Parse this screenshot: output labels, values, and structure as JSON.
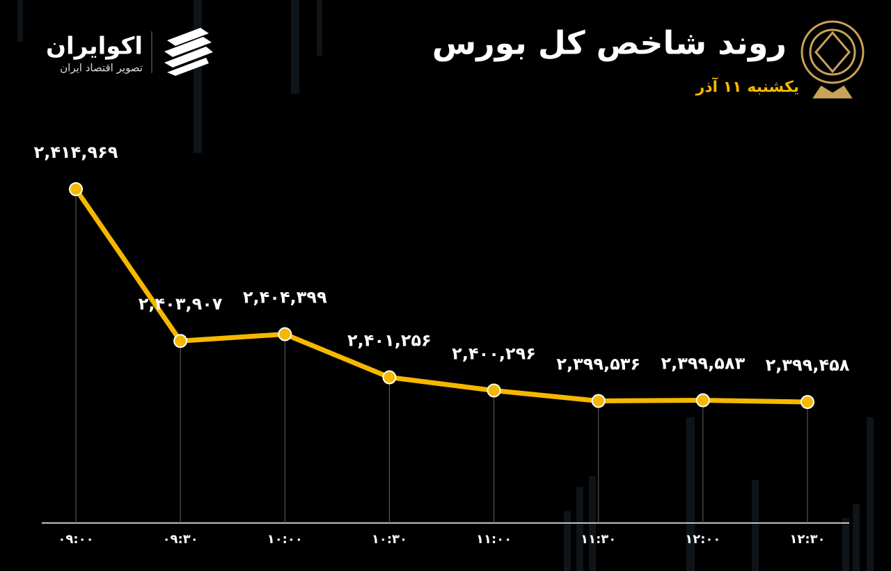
{
  "chart_data": {
    "type": "line",
    "title": "روند شاخص کل بورس",
    "subtitle": "یکشنبه ۱۱ آذر",
    "brand": "اکوایران",
    "brand_tagline": "تصویر اقتصاد ایران",
    "categories": [
      "۰۹:۰۰",
      "۰۹:۳۰",
      "۱۰:۰۰",
      "۱۰:۳۰",
      "۱۱:۰۰",
      "۱۱:۳۰",
      "۱۲:۰۰",
      "۱۲:۳۰"
    ],
    "values": [
      2414969,
      2403907,
      2404399,
      2401256,
      2400296,
      2399536,
      2399583,
      2399458
    ],
    "value_labels": [
      "۲,۴۱۴,۹۶۹",
      "۲,۴۰۳,۹۰۷",
      "۲,۴۰۴,۳۹۹",
      "۲,۴۰۱,۲۵۶",
      "۲,۴۰۰,۲۹۶",
      "۲,۳۹۹,۵۳۶",
      "۲,۳۹۹,۵۸۳",
      "۲,۳۹۹,۴۵۸"
    ],
    "color": "#f5b800"
  }
}
